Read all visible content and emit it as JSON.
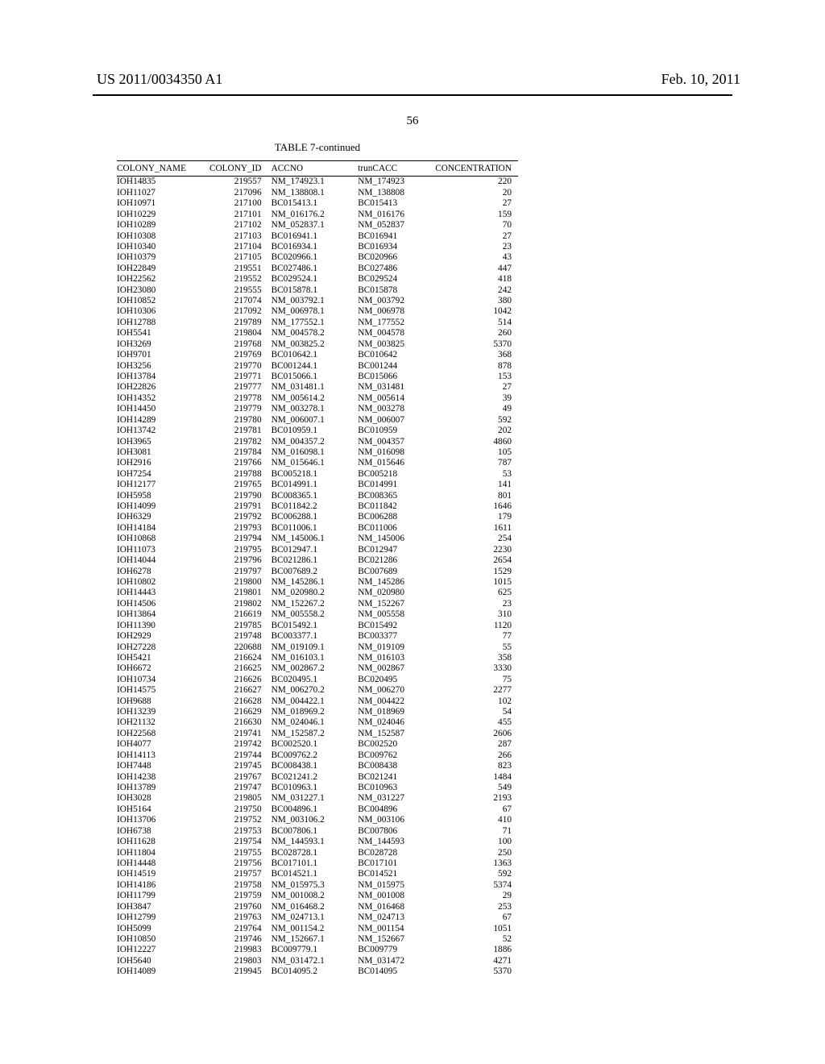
{
  "header": {
    "left": "US 2011/0034350 A1",
    "right": "Feb. 10, 2011",
    "page_number": "56"
  },
  "table": {
    "title": "TABLE 7-continued",
    "columns": [
      "COLONY_NAME",
      "COLONY_ID",
      "ACCNO",
      "trunCACC",
      "CONCENTRATION"
    ],
    "rows": [
      [
        "IOH14835",
        "219557",
        "NM_174923.1",
        "NM_174923",
        "220"
      ],
      [
        "IOH11027",
        "217096",
        "NM_138808.1",
        "NM_138808",
        "20"
      ],
      [
        "IOH10971",
        "217100",
        "BC015413.1",
        "BC015413",
        "27"
      ],
      [
        "IOH10229",
        "217101",
        "NM_016176.2",
        "NM_016176",
        "159"
      ],
      [
        "IOH10289",
        "217102",
        "NM_052837.1",
        "NM_052837",
        "70"
      ],
      [
        "IOH10308",
        "217103",
        "BC016941.1",
        "BC016941",
        "27"
      ],
      [
        "IOH10340",
        "217104",
        "BC016934.1",
        "BC016934",
        "23"
      ],
      [
        "IOH10379",
        "217105",
        "BC020966.1",
        "BC020966",
        "43"
      ],
      [
        "IOH22849",
        "219551",
        "BC027486.1",
        "BC027486",
        "447"
      ],
      [
        "IOH22562",
        "219552",
        "BC029524.1",
        "BC029524",
        "418"
      ],
      [
        "IOH23080",
        "219555",
        "BC015878.1",
        "BC015878",
        "242"
      ],
      [
        "IOH10852",
        "217074",
        "NM_003792.1",
        "NM_003792",
        "380"
      ],
      [
        "IOH10306",
        "217092",
        "NM_006978.1",
        "NM_006978",
        "1042"
      ],
      [
        "IOH12788",
        "219789",
        "NM_177552.1",
        "NM_177552",
        "514"
      ],
      [
        "IOH5541",
        "219804",
        "NM_004578.2",
        "NM_004578",
        "260"
      ],
      [
        "IOH3269",
        "219768",
        "NM_003825.2",
        "NM_003825",
        "5370"
      ],
      [
        "IOH9701",
        "219769",
        "BC010642.1",
        "BC010642",
        "368"
      ],
      [
        "IOH3256",
        "219770",
        "BC001244.1",
        "BC001244",
        "878"
      ],
      [
        "IOH13784",
        "219771",
        "BC015066.1",
        "BC015066",
        "153"
      ],
      [
        "IOH22826",
        "219777",
        "NM_031481.1",
        "NM_031481",
        "27"
      ],
      [
        "IOH14352",
        "219778",
        "NM_005614.2",
        "NM_005614",
        "39"
      ],
      [
        "IOH14450",
        "219779",
        "NM_003278.1",
        "NM_003278",
        "49"
      ],
      [
        "IOH14289",
        "219780",
        "NM_006007.1",
        "NM_006007",
        "592"
      ],
      [
        "IOH13742",
        "219781",
        "BC010959.1",
        "BC010959",
        "202"
      ],
      [
        "IOH3965",
        "219782",
        "NM_004357.2",
        "NM_004357",
        "4860"
      ],
      [
        "IOH3081",
        "219784",
        "NM_016098.1",
        "NM_016098",
        "105"
      ],
      [
        "IOH2916",
        "219766",
        "NM_015646.1",
        "NM_015646",
        "787"
      ],
      [
        "IOH7254",
        "219788",
        "BC005218.1",
        "BC005218",
        "53"
      ],
      [
        "IOH12177",
        "219765",
        "BC014991.1",
        "BC014991",
        "141"
      ],
      [
        "IOH5958",
        "219790",
        "BC008365.1",
        "BC008365",
        "801"
      ],
      [
        "IOH14099",
        "219791",
        "BC011842.2",
        "BC011842",
        "1646"
      ],
      [
        "IOH6329",
        "219792",
        "BC006288.1",
        "BC006288",
        "179"
      ],
      [
        "IOH14184",
        "219793",
        "BC011006.1",
        "BC011006",
        "1611"
      ],
      [
        "IOH10868",
        "219794",
        "NM_145006.1",
        "NM_145006",
        "254"
      ],
      [
        "IOH11073",
        "219795",
        "BC012947.1",
        "BC012947",
        "2230"
      ],
      [
        "IOH14044",
        "219796",
        "BC021286.1",
        "BC021286",
        "2654"
      ],
      [
        "IOH6278",
        "219797",
        "BC007689.2",
        "BC007689",
        "1529"
      ],
      [
        "IOH10802",
        "219800",
        "NM_145286.1",
        "NM_145286",
        "1015"
      ],
      [
        "IOH14443",
        "219801",
        "NM_020980.2",
        "NM_020980",
        "625"
      ],
      [
        "IOH14506",
        "219802",
        "NM_152267.2",
        "NM_152267",
        "23"
      ],
      [
        "IOH13864",
        "216619",
        "NM_005558.2",
        "NM_005558",
        "310"
      ],
      [
        "IOH11390",
        "219785",
        "BC015492.1",
        "BC015492",
        "1120"
      ],
      [
        "IOH2929",
        "219748",
        "BC003377.1",
        "BC003377",
        "77"
      ],
      [
        "IOH27228",
        "220688",
        "NM_019109.1",
        "NM_019109",
        "55"
      ],
      [
        "IOH5421",
        "216624",
        "NM_016103.1",
        "NM_016103",
        "358"
      ],
      [
        "IOH6672",
        "216625",
        "NM_002867.2",
        "NM_002867",
        "3330"
      ],
      [
        "IOH10734",
        "216626",
        "BC020495.1",
        "BC020495",
        "75"
      ],
      [
        "IOH14575",
        "216627",
        "NM_006270.2",
        "NM_006270",
        "2277"
      ],
      [
        "IOH9688",
        "216628",
        "NM_004422.1",
        "NM_004422",
        "102"
      ],
      [
        "IOH13239",
        "216629",
        "NM_018969.2",
        "NM_018969",
        "54"
      ],
      [
        "IOH21132",
        "216630",
        "NM_024046.1",
        "NM_024046",
        "455"
      ],
      [
        "IOH22568",
        "219741",
        "NM_152587.2",
        "NM_152587",
        "2606"
      ],
      [
        "IOH4077",
        "219742",
        "BC002520.1",
        "BC002520",
        "287"
      ],
      [
        "IOH14113",
        "219744",
        "BC009762.2",
        "BC009762",
        "266"
      ],
      [
        "IOH7448",
        "219745",
        "BC008438.1",
        "BC008438",
        "823"
      ],
      [
        "IOH14238",
        "219767",
        "BC021241.2",
        "BC021241",
        "1484"
      ],
      [
        "IOH13789",
        "219747",
        "BC010963.1",
        "BC010963",
        "549"
      ],
      [
        "IOH3028",
        "219805",
        "NM_031227.1",
        "NM_031227",
        "2193"
      ],
      [
        "IOH5164",
        "219750",
        "BC004896.1",
        "BC004896",
        "67"
      ],
      [
        "IOH13706",
        "219752",
        "NM_003106.2",
        "NM_003106",
        "410"
      ],
      [
        "IOH6738",
        "219753",
        "BC007806.1",
        "BC007806",
        "71"
      ],
      [
        "IOH11628",
        "219754",
        "NM_144593.1",
        "NM_144593",
        "100"
      ],
      [
        "IOH11804",
        "219755",
        "BC028728.1",
        "BC028728",
        "250"
      ],
      [
        "IOH14448",
        "219756",
        "BC017101.1",
        "BC017101",
        "1363"
      ],
      [
        "IOH14519",
        "219757",
        "BC014521.1",
        "BC014521",
        "592"
      ],
      [
        "IOH14186",
        "219758",
        "NM_015975.3",
        "NM_015975",
        "5374"
      ],
      [
        "IOH11799",
        "219759",
        "NM_001008.2",
        "NM_001008",
        "29"
      ],
      [
        "IOH3847",
        "219760",
        "NM_016468.2",
        "NM_016468",
        "253"
      ],
      [
        "IOH12799",
        "219763",
        "NM_024713.1",
        "NM_024713",
        "67"
      ],
      [
        "IOH5099",
        "219764",
        "NM_001154.2",
        "NM_001154",
        "1051"
      ],
      [
        "IOH10850",
        "219746",
        "NM_152667.1",
        "NM_152667",
        "52"
      ],
      [
        "IOH12227",
        "219983",
        "BC009779.1",
        "BC009779",
        "1886"
      ],
      [
        "IOH5640",
        "219803",
        "NM_031472.1",
        "NM_031472",
        "4271"
      ],
      [
        "IOH14089",
        "219945",
        "BC014095.2",
        "BC014095",
        "5370"
      ]
    ]
  }
}
